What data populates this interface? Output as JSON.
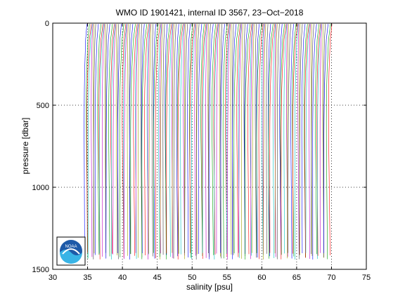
{
  "chart_data": {
    "type": "line",
    "title": "WMO ID 1901421, internal ID 3567, 23−Oct−2018",
    "xlabel": "salinity [psu]",
    "ylabel": "pressure [dbar]",
    "xlim": [
      30,
      75
    ],
    "ylim": [
      0,
      1500
    ],
    "y_reversed": true,
    "grid": true,
    "x_ticks": [
      30,
      35,
      40,
      45,
      50,
      55,
      60,
      65,
      70,
      75
    ],
    "y_ticks": [
      0,
      500,
      1000,
      1500
    ],
    "x_gridlines": [
      35,
      40,
      45,
      50,
      55,
      60,
      65,
      70
    ],
    "y_gridlines": [
      500,
      1000
    ],
    "profiles": {
      "count": 150,
      "first_offset_psu": 34.6,
      "offset_step_psu": 0.235,
      "pressure": [
        5,
        50,
        100,
        200,
        300,
        400,
        500,
        600,
        700,
        800,
        900,
        1000,
        1100,
        1200,
        1300,
        1420
      ],
      "base_salinity_shape": [
        0.3,
        0.22,
        0.12,
        0.05,
        -0.02,
        -0.06,
        -0.08,
        -0.09,
        -0.09,
        -0.08,
        -0.07,
        -0.06,
        -0.05,
        -0.04,
        -0.03,
        -0.02
      ],
      "colors": [
        "#0000ff",
        "#00a000",
        "#ff0000",
        "#00c0c0",
        "#c000c0",
        "#a0a000",
        "#404040"
      ]
    },
    "logo": {
      "name": "noaa-logo",
      "text": "NOAA"
    }
  }
}
